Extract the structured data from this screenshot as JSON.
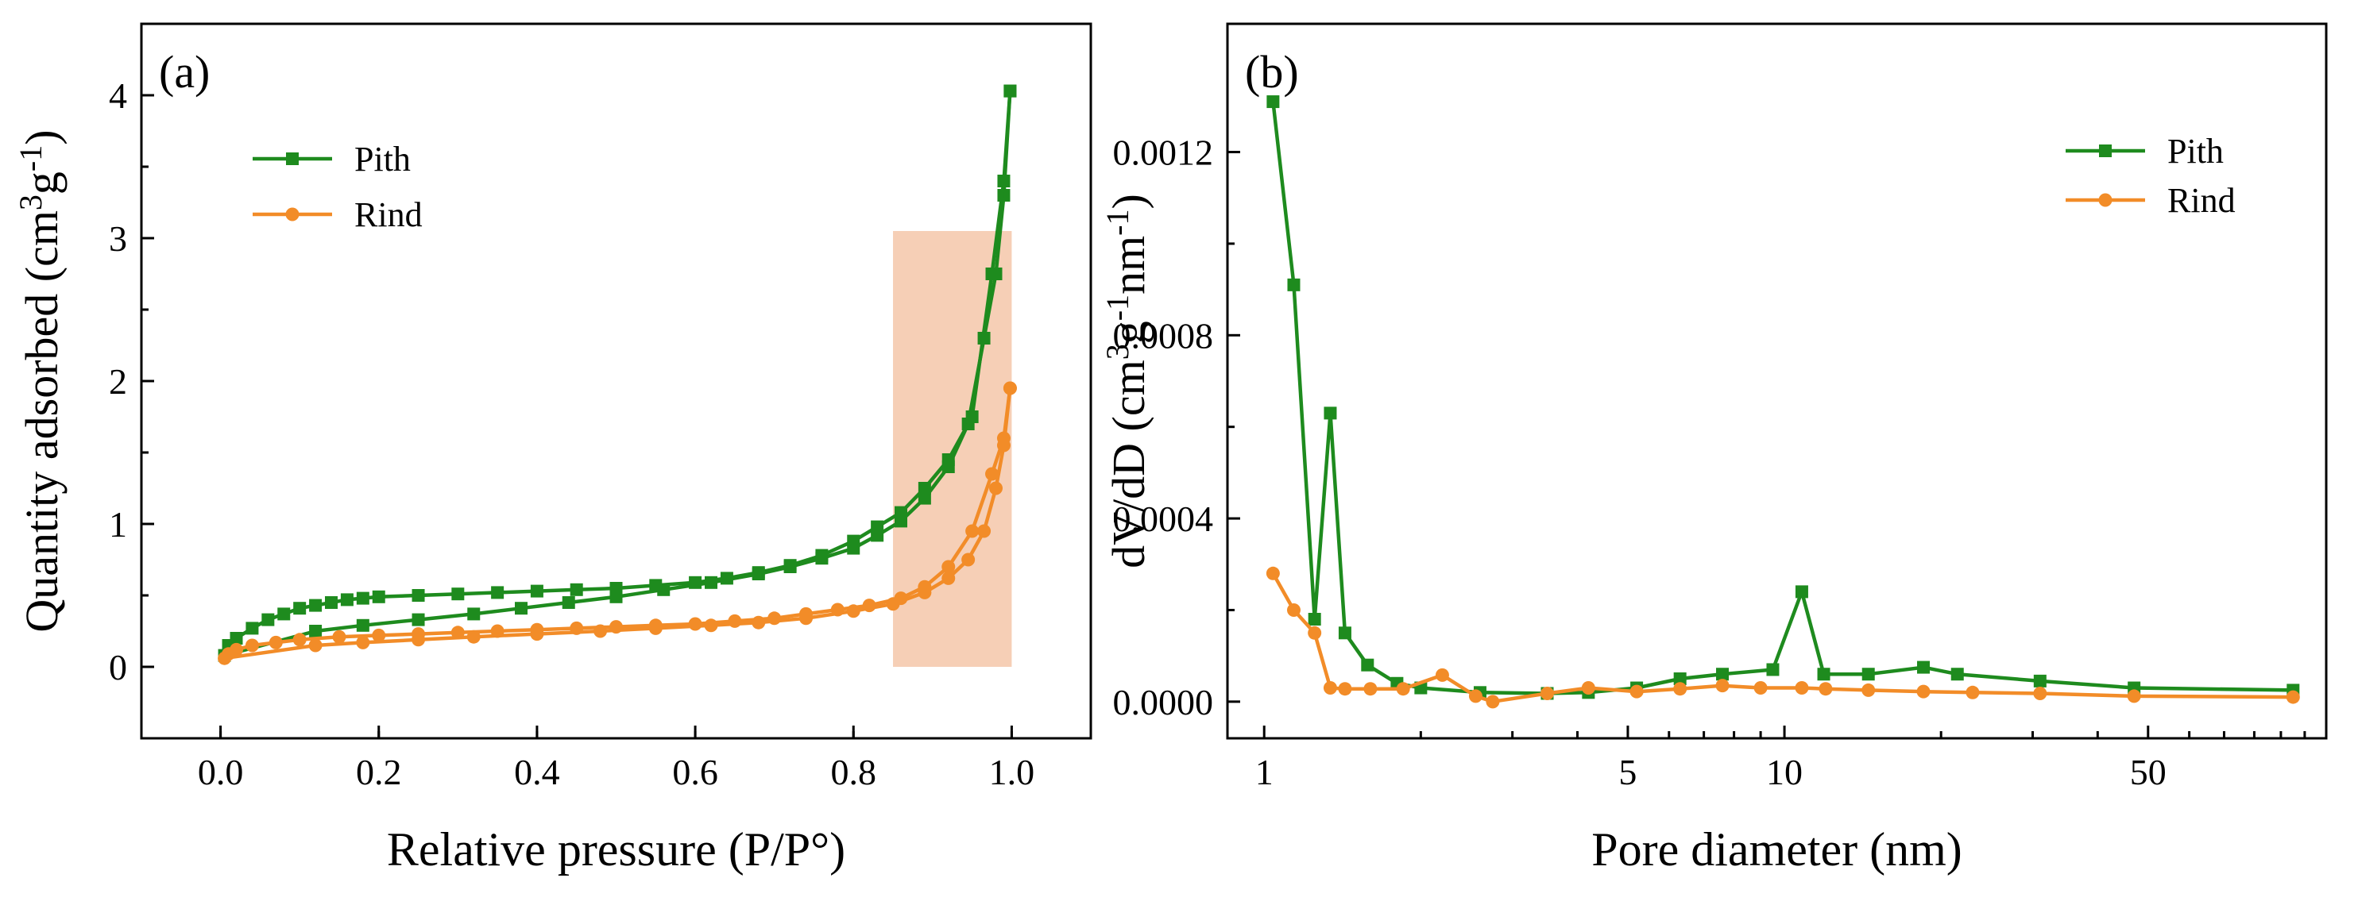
{
  "chart_data": [
    {
      "type": "line",
      "panel_label": "(a)",
      "xlabel": "Relative pressure (P/P°)",
      "ylabel_main": "Quantity adsorbed (cm",
      "ylabel_sup1": "3",
      "ylabel_mid": "g",
      "ylabel_sup2": "-1",
      "ylabel_end": ")",
      "xlim": [
        -0.1,
        1.1
      ],
      "ylim": [
        -0.5,
        4.5
      ],
      "xticks": [
        "0.0",
        "0.2",
        "0.4",
        "0.6",
        "0.8",
        "1.0"
      ],
      "xtick_values": [
        0.0,
        0.2,
        0.4,
        0.6,
        0.8,
        1.0
      ],
      "yticks": [
        "0",
        "1",
        "2",
        "3",
        "4"
      ],
      "ytick_values": [
        0,
        1,
        2,
        3,
        4
      ],
      "legend": [
        "Pith",
        "Rind"
      ],
      "legend_position": "upper-left",
      "highlight": {
        "x0": 0.85,
        "x1": 1.0,
        "y0": 0.0,
        "y1": 3.05,
        "color": "#f5c7a9"
      },
      "series": [
        {
          "name": "Pith",
          "color": "#1e8b1e",
          "marker": "square",
          "adsorption": {
            "x": [
              0.005,
              0.12,
              0.18,
              0.25,
              0.32,
              0.38,
              0.44,
              0.5,
              0.56,
              0.62,
              0.68,
              0.72,
              0.76,
              0.8,
              0.83,
              0.86,
              0.89,
              0.92,
              0.945,
              0.965,
              0.98,
              0.99,
              0.998
            ],
            "y": [
              0.08,
              0.25,
              0.29,
              0.33,
              0.37,
              0.41,
              0.45,
              0.49,
              0.54,
              0.59,
              0.65,
              0.7,
              0.76,
              0.83,
              0.92,
              1.02,
              1.18,
              1.4,
              1.7,
              2.3,
              2.75,
              3.3,
              4.03
            ]
          },
          "desorption": {
            "x": [
              0.998,
              0.99,
              0.975,
              0.95,
              0.92,
              0.89,
              0.86,
              0.83,
              0.8,
              0.76,
              0.72,
              0.68,
              0.64,
              0.6,
              0.55,
              0.5,
              0.45,
              0.4,
              0.35,
              0.3,
              0.25,
              0.2,
              0.18,
              0.16,
              0.14,
              0.12,
              0.1,
              0.08,
              0.06,
              0.04,
              0.02,
              0.01
            ],
            "y": [
              4.03,
              3.4,
              2.75,
              1.75,
              1.45,
              1.25,
              1.08,
              0.98,
              0.88,
              0.78,
              0.71,
              0.66,
              0.62,
              0.59,
              0.57,
              0.55,
              0.54,
              0.53,
              0.52,
              0.51,
              0.5,
              0.49,
              0.48,
              0.47,
              0.45,
              0.43,
              0.41,
              0.37,
              0.33,
              0.27,
              0.2,
              0.15
            ]
          }
        },
        {
          "name": "Rind",
          "color": "#f28c28",
          "marker": "circle",
          "adsorption": {
            "x": [
              0.005,
              0.12,
              0.18,
              0.25,
              0.32,
              0.4,
              0.48,
              0.55,
              0.62,
              0.68,
              0.74,
              0.8,
              0.85,
              0.89,
              0.92,
              0.945,
              0.965,
              0.98,
              0.99,
              0.998
            ],
            "y": [
              0.06,
              0.15,
              0.17,
              0.19,
              0.21,
              0.23,
              0.25,
              0.27,
              0.29,
              0.31,
              0.34,
              0.39,
              0.44,
              0.52,
              0.62,
              0.75,
              0.95,
              1.25,
              1.55,
              1.95
            ]
          },
          "desorption": {
            "x": [
              0.998,
              0.99,
              0.975,
              0.95,
              0.92,
              0.89,
              0.86,
              0.82,
              0.78,
              0.74,
              0.7,
              0.65,
              0.6,
              0.55,
              0.5,
              0.45,
              0.4,
              0.35,
              0.3,
              0.25,
              0.2,
              0.15,
              0.1,
              0.07,
              0.04,
              0.02,
              0.01
            ],
            "y": [
              1.95,
              1.6,
              1.35,
              0.95,
              0.7,
              0.56,
              0.48,
              0.43,
              0.4,
              0.37,
              0.34,
              0.32,
              0.3,
              0.29,
              0.28,
              0.27,
              0.26,
              0.25,
              0.24,
              0.23,
              0.22,
              0.21,
              0.19,
              0.17,
              0.15,
              0.12,
              0.09
            ]
          }
        }
      ]
    },
    {
      "type": "line",
      "panel_label": "(b)",
      "xlabel": "Pore diameter (nm)",
      "ylabel_main": "dV/dD  (cm",
      "ylabel_sup1": "3",
      "ylabel_mid": "g",
      "ylabel_sup2": "-1",
      "ylabel_mid2": "nm",
      "ylabel_sup3": "-1",
      "ylabel_end": ")",
      "xscale": "log",
      "xlim": [
        0.85,
        110
      ],
      "ylim": [
        -8e-05,
        0.00148
      ],
      "xticks": [
        "1",
        "5",
        "10",
        "50"
      ],
      "xtick_values": [
        1,
        5,
        10,
        50
      ],
      "yticks": [
        "0.0000",
        "0.0004",
        "0.0008",
        "0.0012"
      ],
      "ytick_values": [
        0.0,
        0.0004,
        0.0008,
        0.0012
      ],
      "legend": [
        "Pith",
        "Rind"
      ],
      "legend_position": "upper-right",
      "series": [
        {
          "name": "Pith",
          "color": "#1e8b1e",
          "marker": "square",
          "x": [
            1.04,
            1.14,
            1.25,
            1.34,
            1.43,
            1.58,
            1.8,
            2.0,
            2.6,
            3.5,
            4.2,
            5.2,
            6.3,
            7.6,
            9.5,
            10.8,
            11.9,
            14.5,
            18.5,
            21.5,
            31,
            47,
            95
          ],
          "y": [
            0.00131,
            0.00091,
            0.00018,
            0.00063,
            0.00015,
            8e-05,
            4e-05,
            3e-05,
            2e-05,
            1.8e-05,
            2e-05,
            3e-05,
            5e-05,
            6e-05,
            7e-05,
            0.00024,
            6e-05,
            6e-05,
            7.5e-05,
            6e-05,
            4.5e-05,
            3e-05,
            2.5e-05
          ]
        },
        {
          "name": "Rind",
          "color": "#f28c28",
          "marker": "circle",
          "x": [
            1.04,
            1.14,
            1.25,
            1.34,
            1.43,
            1.6,
            1.85,
            2.2,
            2.55,
            2.75,
            3.5,
            4.2,
            5.2,
            6.3,
            7.6,
            9.0,
            10.8,
            12.0,
            14.5,
            18.5,
            23,
            31,
            47,
            95
          ],
          "y": [
            0.00028,
            0.0002,
            0.00015,
            3e-05,
            2.8e-05,
            2.8e-05,
            2.8e-05,
            5.8e-05,
            1.2e-05,
            0.0,
            1.8e-05,
            3e-05,
            2.2e-05,
            2.8e-05,
            3.5e-05,
            3e-05,
            3e-05,
            2.8e-05,
            2.5e-05,
            2.2e-05,
            2e-05,
            1.8e-05,
            1.2e-05,
            1e-05
          ]
        }
      ]
    }
  ]
}
